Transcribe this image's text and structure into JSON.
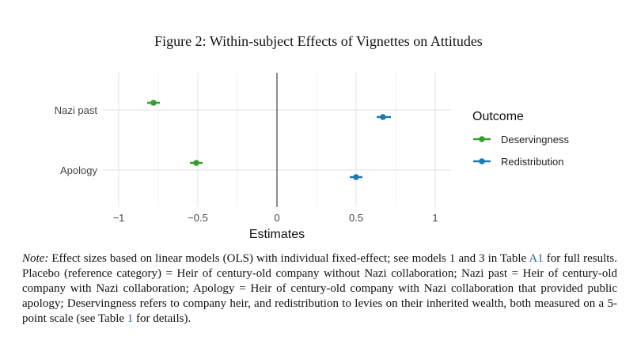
{
  "figure_title": "Figure 2: Within-subject Effects of Vignettes on Attitudes",
  "note": {
    "label": "Note:",
    "text1": " Effect sizes based on linear models (OLS) with individual fixed-effect; see models 1 and 3 in Table ",
    "ref1": "A1",
    "text2": " for full results. Placebo (reference category) = Heir of century-old company without Nazi collaboration; Nazi past = Heir of century-old company with Nazi collaboration; Apology = Heir of century-old company with Nazi collaboration that provided public apology; Deservingness refers to company heir, and redistribution to levies on their inherited wealth, both measured on a 5-point scale (see Table ",
    "ref2": "1",
    "text3": " for details)."
  },
  "colors": {
    "deservingness": "#33a02c",
    "redistribution": "#1f78b4",
    "reference_line": "#555555",
    "grid": "#e6e6e6"
  },
  "chart_data": {
    "type": "scatter",
    "title": "",
    "xlabel": "Estimates",
    "ylabel": "",
    "xlim": [
      -1.1,
      1.1
    ],
    "xticks": [
      -1,
      -0.5,
      0,
      0.5,
      1
    ],
    "xtick_labels": [
      "−1",
      "−0.5",
      "0",
      "0.5",
      "1"
    ],
    "categories": [
      "Nazi past",
      "Apology"
    ],
    "reference_line": 0,
    "grid": true,
    "legend_title": "Outcome",
    "legend_position": "right",
    "series": [
      {
        "name": "Deservingness",
        "color": "#33a02c",
        "points": [
          {
            "category": "Nazi past",
            "estimate": -0.78,
            "ci": [
              -0.82,
              -0.74
            ]
          },
          {
            "category": "Apology",
            "estimate": -0.51,
            "ci": [
              -0.55,
              -0.47
            ]
          }
        ]
      },
      {
        "name": "Redistribution",
        "color": "#1f78b4",
        "points": [
          {
            "category": "Nazi past",
            "estimate": 0.67,
            "ci": [
              0.63,
              0.72
            ]
          },
          {
            "category": "Apology",
            "estimate": 0.5,
            "ci": [
              0.46,
              0.54
            ]
          }
        ]
      }
    ]
  }
}
